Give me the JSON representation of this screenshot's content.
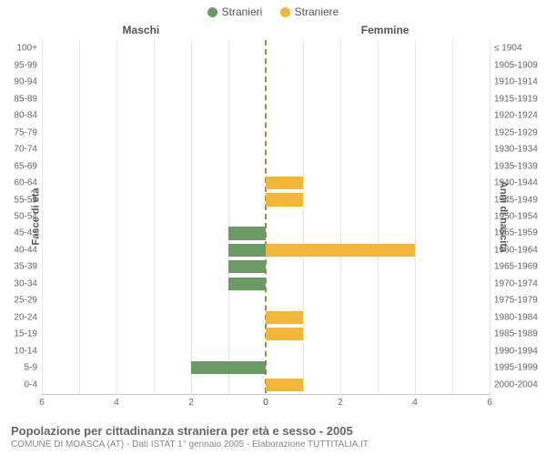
{
  "legend": {
    "male": {
      "label": "Stranieri",
      "color": "#6b9a64"
    },
    "female": {
      "label": "Straniere",
      "color": "#f2b738"
    }
  },
  "panels": {
    "left": "Maschi",
    "right": "Femmine"
  },
  "axis": {
    "left_label": "Fasce di età",
    "right_label": "Anni di nascita"
  },
  "x": {
    "max": 6,
    "ticks_left": [
      6,
      4,
      2,
      0
    ],
    "ticks_right": [
      0,
      2,
      4,
      6
    ]
  },
  "rows": [
    {
      "age": "100+",
      "birth": "≤ 1904",
      "m": 0,
      "f": 0
    },
    {
      "age": "95-99",
      "birth": "1905-1909",
      "m": 0,
      "f": 0
    },
    {
      "age": "90-94",
      "birth": "1910-1914",
      "m": 0,
      "f": 0
    },
    {
      "age": "85-89",
      "birth": "1915-1919",
      "m": 0,
      "f": 0
    },
    {
      "age": "80-84",
      "birth": "1920-1924",
      "m": 0,
      "f": 0
    },
    {
      "age": "75-79",
      "birth": "1925-1929",
      "m": 0,
      "f": 0
    },
    {
      "age": "70-74",
      "birth": "1930-1934",
      "m": 0,
      "f": 0
    },
    {
      "age": "65-69",
      "birth": "1935-1939",
      "m": 0,
      "f": 0
    },
    {
      "age": "60-64",
      "birth": "1940-1944",
      "m": 0,
      "f": 1
    },
    {
      "age": "55-59",
      "birth": "1945-1949",
      "m": 0,
      "f": 1
    },
    {
      "age": "50-54",
      "birth": "1950-1954",
      "m": 0,
      "f": 0
    },
    {
      "age": "45-49",
      "birth": "1955-1959",
      "m": 1,
      "f": 0
    },
    {
      "age": "40-44",
      "birth": "1960-1964",
      "m": 1,
      "f": 4
    },
    {
      "age": "35-39",
      "birth": "1965-1969",
      "m": 1,
      "f": 0
    },
    {
      "age": "30-34",
      "birth": "1970-1974",
      "m": 1,
      "f": 0
    },
    {
      "age": "25-29",
      "birth": "1975-1979",
      "m": 0,
      "f": 0
    },
    {
      "age": "20-24",
      "birth": "1980-1984",
      "m": 0,
      "f": 1
    },
    {
      "age": "15-19",
      "birth": "1985-1989",
      "m": 0,
      "f": 1
    },
    {
      "age": "10-14",
      "birth": "1990-1994",
      "m": 0,
      "f": 0
    },
    {
      "age": "5-9",
      "birth": "1995-1999",
      "m": 2,
      "f": 0
    },
    {
      "age": "0-4",
      "birth": "2000-2004",
      "m": 0,
      "f": 1
    }
  ],
  "footer": {
    "title": "Popolazione per cittadinanza straniera per età e sesso - 2005",
    "subtitle": "COMUNE DI MOASCA (AT) - Dati ISTAT 1° gennaio 2005 - Elaborazione TUTTITALIA.IT"
  },
  "style": {
    "row_label_fontsize": 10,
    "title_fontsize": 13,
    "background_color": "#ffffff",
    "grid_color": "#e8e8e8",
    "center_line_color": "#9a8f4a"
  }
}
